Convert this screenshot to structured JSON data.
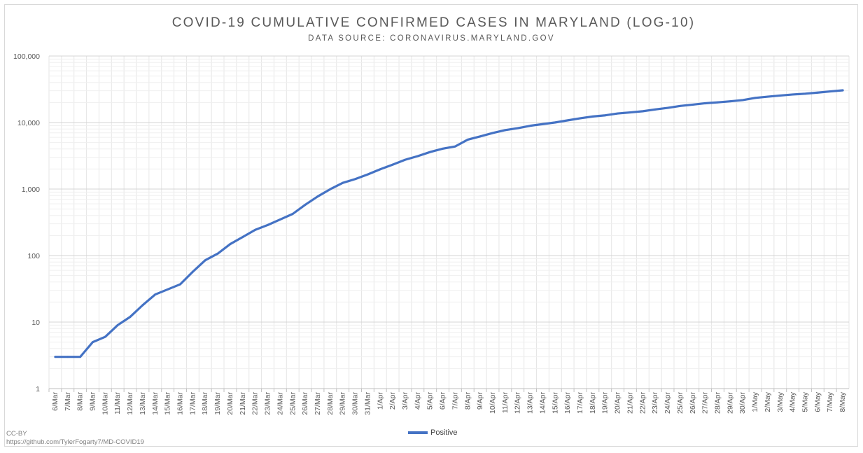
{
  "chart_data": {
    "type": "line",
    "title": "COVID-19 CUMULATIVE CONFIRMED CASES IN MARYLAND (LOG-10)",
    "subtitle": "DATA SOURCE: CORONAVIRUS.MARYLAND.GOV",
    "xlabel": "",
    "ylabel": "",
    "y_scale": "log10",
    "ylim": [
      1,
      100000
    ],
    "y_ticks": [
      1,
      10,
      100,
      1000,
      10000,
      100000
    ],
    "y_tick_labels": [
      "1",
      "10",
      "100",
      "1,000",
      "10,000",
      "100,000"
    ],
    "grid": true,
    "legend_position": "bottom",
    "color": "#4472c4",
    "categories": [
      "6/Mar",
      "7/Mar",
      "8/Mar",
      "9/Mar",
      "10/Mar",
      "11/Mar",
      "12/Mar",
      "13/Mar",
      "14/Mar",
      "15/Mar",
      "16/Mar",
      "17/Mar",
      "18/Mar",
      "19/Mar",
      "20/Mar",
      "21/Mar",
      "22/Mar",
      "23/Mar",
      "24/Mar",
      "25/Mar",
      "26/Mar",
      "27/Mar",
      "28/Mar",
      "29/Mar",
      "30/Mar",
      "31/Mar",
      "1/Apr",
      "2/Apr",
      "3/Apr",
      "4/Apr",
      "5/Apr",
      "6/Apr",
      "7/Apr",
      "8/Apr",
      "9/Apr",
      "10/Apr",
      "11/Apr",
      "12/Apr",
      "13/Apr",
      "14/Apr",
      "15/Apr",
      "16/Apr",
      "17/Apr",
      "18/Apr",
      "19/Apr",
      "20/Apr",
      "21/Apr",
      "22/Apr",
      "23/Apr",
      "24/Apr",
      "25/Apr",
      "26/Apr",
      "27/Apr",
      "28/Apr",
      "29/Apr",
      "30/Apr",
      "1/May",
      "2/May",
      "3/May",
      "4/May",
      "5/May",
      "6/May",
      "7/May",
      "8/May"
    ],
    "series": [
      {
        "name": "Positive",
        "values": [
          3,
          3,
          3,
          5,
          6,
          9,
          12,
          18,
          26,
          31,
          37,
          57,
          85,
          107,
          149,
          190,
          244,
          288,
          349,
          423,
          580,
          774,
          995,
          1239,
          1413,
          1660,
          1985,
          2331,
          2758,
          3125,
          3609,
          4045,
          4371,
          5529,
          6185,
          6968,
          7694,
          8225,
          8936,
          9472,
          10032,
          10784,
          11572,
          12326,
          12830,
          13684,
          14193,
          14775,
          15737,
          16616,
          17766,
          18581,
          19487,
          20113,
          20849,
          21742,
          23472,
          24473,
          25462,
          26408,
          27117,
          28163,
          29374,
          30485
        ]
      }
    ]
  },
  "credit": {
    "license": "CC-BY",
    "url": "https://github.com/TylerFogarty7/MD-COVID19"
  }
}
